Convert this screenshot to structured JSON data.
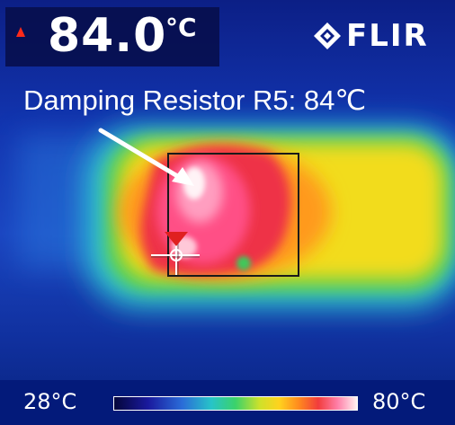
{
  "readout": {
    "value": "84.0",
    "unit": "°C",
    "alarm_arrow_icon": "red-triangle-up",
    "alarm_color": "#ff2a1a"
  },
  "logo": {
    "text": "FLIR",
    "mark_icon": "flir-diamond-mark"
  },
  "annotation": {
    "text": "Damping Resistor R5: 84℃",
    "arrow_icon": "white-arrow"
  },
  "overlay": {
    "box_color": "#1a1a1a",
    "spot_marker_icon": "crosshair-with-red-triangle"
  },
  "scale": {
    "min_label": "28°C",
    "max_label": "80°C",
    "palette": [
      "#05063a",
      "#1a1a9e",
      "#2a6cd8",
      "#27c4c8",
      "#3bd26a",
      "#cfe12a",
      "#ffd21e",
      "#ff8a1e",
      "#f23c3c",
      "#ff7fa8",
      "#fff2f2"
    ]
  }
}
